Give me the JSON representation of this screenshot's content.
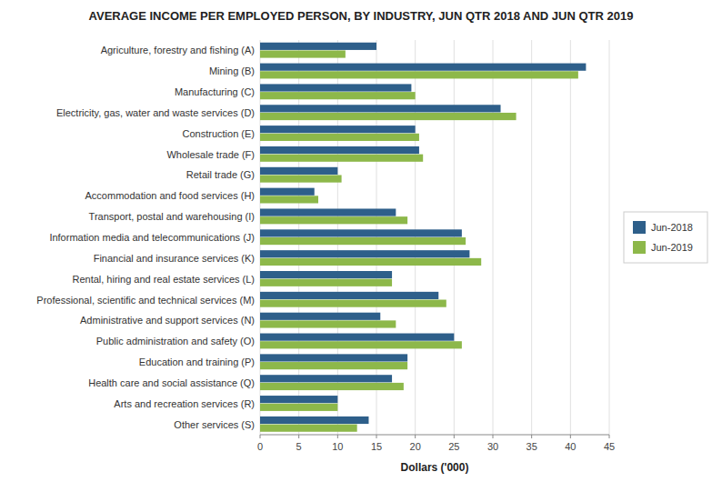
{
  "chart_data": {
    "type": "bar",
    "orientation": "horizontal",
    "title": "AVERAGE INCOME PER EMPLOYED PERSON, BY INDUSTRY, JUN QTR 2018 AND JUN QTR 2019",
    "xlabel": "Dollars ('000)",
    "categories": [
      "Agriculture, forestry and fishing (A)",
      "Mining (B)",
      "Manufacturing (C)",
      "Electricity, gas, water and waste services (D)",
      "Construction (E)",
      "Wholesale trade (F)",
      "Retail trade (G)",
      "Accommodation and food services (H)",
      "Transport, postal and warehousing (I)",
      "Information media and telecommunications (J)",
      "Financial and insurance services (K)",
      "Rental, hiring and real estate services (L)",
      "Professional, scientific and technical services (M)",
      "Administrative and support services (N)",
      "Public administration and safety (O)",
      "Education and training (P)",
      "Health care and social assistance (Q)",
      "Arts and recreation services (R)",
      "Other services (S)"
    ],
    "series": [
      {
        "name": "Jun-2018",
        "color": "#2E5F8A",
        "values": [
          15.0,
          42.0,
          19.5,
          31.0,
          20.0,
          20.5,
          10.0,
          7.0,
          17.5,
          26.0,
          27.0,
          17.0,
          23.0,
          15.5,
          25.0,
          19.0,
          17.0,
          10.0,
          14.0
        ]
      },
      {
        "name": "Jun-2019",
        "color": "#8DB84A",
        "values": [
          11.0,
          41.0,
          20.0,
          33.0,
          20.5,
          21.0,
          10.5,
          7.5,
          19.0,
          26.5,
          28.5,
          17.0,
          24.0,
          17.5,
          26.0,
          19.0,
          18.5,
          10.0,
          12.5
        ]
      }
    ],
    "xlim": [
      0,
      45
    ],
    "xticks": [
      0,
      5,
      10,
      15,
      20,
      25,
      30,
      35,
      40,
      45
    ],
    "grid": true,
    "legend": "right"
  }
}
